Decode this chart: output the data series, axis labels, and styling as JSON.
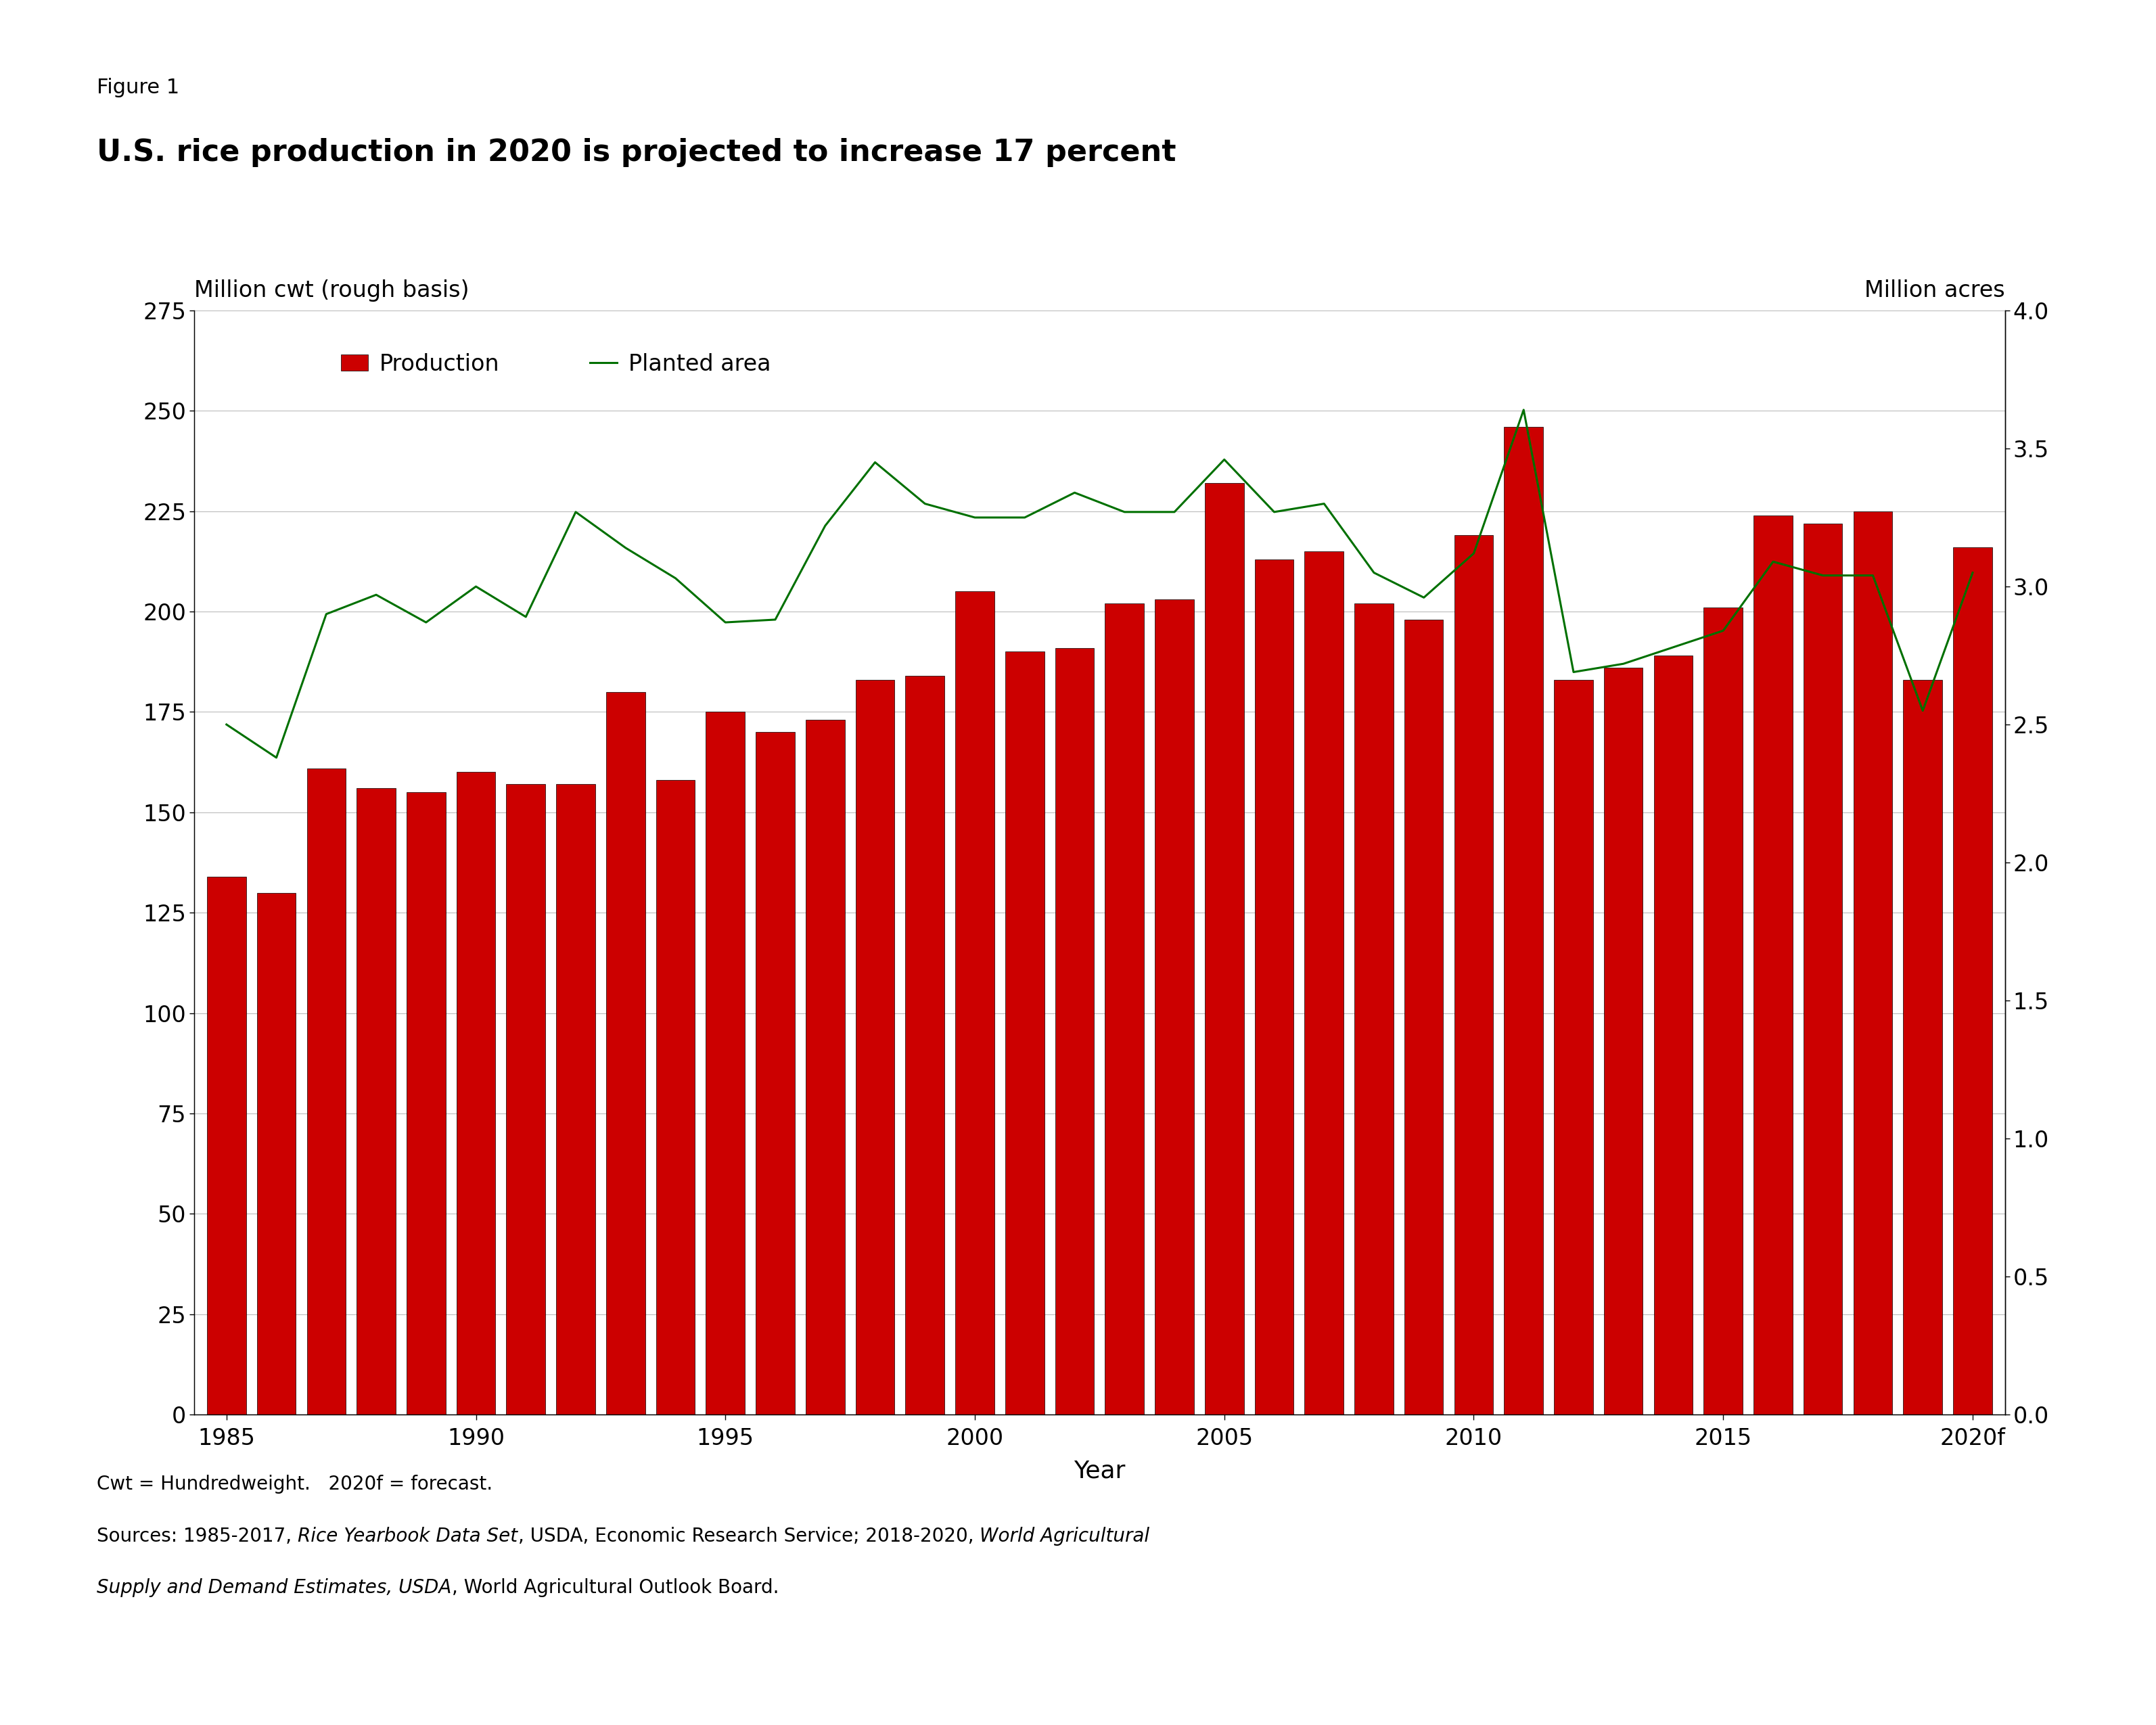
{
  "years": [
    1985,
    1986,
    1987,
    1988,
    1989,
    1990,
    1991,
    1992,
    1993,
    1994,
    1995,
    1996,
    1997,
    1998,
    1999,
    2000,
    2001,
    2002,
    2003,
    2004,
    2005,
    2006,
    2007,
    2008,
    2009,
    2010,
    2011,
    2012,
    2013,
    2014,
    2015,
    2016,
    2017,
    2018,
    2019,
    2020
  ],
  "production": [
    134,
    130,
    161,
    156,
    155,
    160,
    157,
    157,
    180,
    158,
    175,
    170,
    173,
    183,
    184,
    205,
    190,
    191,
    202,
    203,
    232,
    213,
    215,
    202,
    198,
    219,
    246,
    183,
    186,
    189,
    201,
    224,
    222,
    225,
    183,
    216
  ],
  "planted_area": [
    2.5,
    2.38,
    2.9,
    2.97,
    2.87,
    3.0,
    2.89,
    3.27,
    3.14,
    3.03,
    2.87,
    2.88,
    3.22,
    3.45,
    3.3,
    3.25,
    3.25,
    3.34,
    3.27,
    3.27,
    3.46,
    3.27,
    3.3,
    3.05,
    2.96,
    3.12,
    3.64,
    2.69,
    2.72,
    2.78,
    2.84,
    3.09,
    3.04,
    3.04,
    2.55,
    3.05
  ],
  "bar_color": "#cc0000",
  "bar_edge_color": "#000000",
  "line_color": "#007000",
  "fig_width": 31.87,
  "fig_height": 25.5,
  "title_line1": "Figure 1",
  "title_line2": "U.S. rice production in 2020 is projected to increase 17 percent",
  "ylabel_left": "Million cwt (rough basis)",
  "ylabel_right": "Million acres",
  "xlabel": "Year",
  "ylim_left": [
    0,
    275
  ],
  "ylim_right": [
    0.0,
    4.0
  ],
  "yticks_left": [
    0,
    25,
    50,
    75,
    100,
    125,
    150,
    175,
    200,
    225,
    250,
    275
  ],
  "yticks_right": [
    0.0,
    0.5,
    1.0,
    1.5,
    2.0,
    2.5,
    3.0,
    3.5,
    4.0
  ],
  "legend_production": "Production",
  "legend_planted": "Planted area",
  "background_color": "#ffffff",
  "grid_color": "#bbbbbb",
  "title1_fontsize": 22,
  "title2_fontsize": 32,
  "tick_fontsize": 24,
  "label_fontsize": 24,
  "legend_fontsize": 24,
  "footnote_fontsize": 20
}
